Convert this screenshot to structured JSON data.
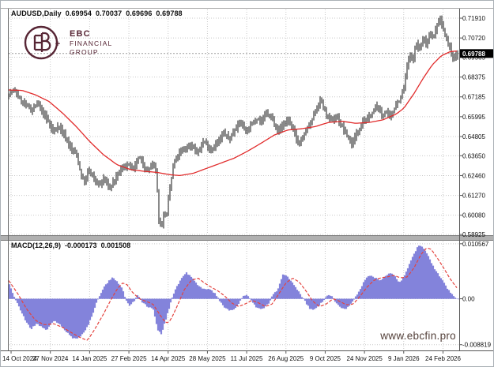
{
  "header": {
    "symbol": "AUDUSD,Daily",
    "open": "0.69954",
    "high": "0.70037",
    "low": "0.69696",
    "close": "0.69788"
  },
  "logo": {
    "line1": "EBC",
    "line2": "FINANCIAL",
    "line3": "GROUP",
    "monogram": "EB+",
    "color": "#572635"
  },
  "watermark": {
    "text": "www.ebcfin.pro",
    "color": "#53403a"
  },
  "macd_header": {
    "name": "MACD(12,26,9)",
    "value_main": "-0.000173",
    "value_signal": "0.001508"
  },
  "chart_data": [
    {
      "type": "bar",
      "title": "AUDUSD,Daily",
      "ohlc": {
        "open": 0.69954,
        "high": 0.70037,
        "low": 0.69696,
        "close": 0.69788
      },
      "ylim": [
        0.5888,
        0.7248
      ],
      "y_ticks": [
        {
          "value": 0.7191,
          "label": "0.71910"
        },
        {
          "value": 0.7072,
          "label": "0.70720"
        },
        {
          "value": 0.69565,
          "label": "0.69565"
        },
        {
          "value": 0.68375,
          "label": "0.68375"
        },
        {
          "value": 0.67185,
          "label": "0.67185"
        },
        {
          "value": 0.65995,
          "label": "0.65995"
        },
        {
          "value": 0.64805,
          "label": "0.64805"
        },
        {
          "value": 0.6365,
          "label": "0.63650"
        },
        {
          "value": 0.6246,
          "label": "0.62460"
        },
        {
          "value": 0.6127,
          "label": "0.61270"
        },
        {
          "value": 0.6008,
          "label": "0.60080"
        },
        {
          "value": 0.58925,
          "label": "0.58925"
        }
      ],
      "current_price": {
        "value": 0.69788,
        "label": "0.69788"
      },
      "x_ticks": [
        {
          "pos": 0.0053,
          "label": "14 Oct 2024"
        },
        {
          "pos": 0.0924,
          "label": "27 Nov 2024"
        },
        {
          "pos": 0.1796,
          "label": "14 Jan 2025"
        },
        {
          "pos": 0.2668,
          "label": "27 Feb 2025"
        },
        {
          "pos": 0.3539,
          "label": "14 Apr 2025"
        },
        {
          "pos": 0.4411,
          "label": "28 May 2025"
        },
        {
          "pos": 0.5282,
          "label": "11 Jul 2025"
        },
        {
          "pos": 0.6154,
          "label": "26 Aug 2025"
        },
        {
          "pos": 0.7025,
          "label": "9 Oct 2025"
        },
        {
          "pos": 0.7897,
          "label": "24 Nov 2025"
        },
        {
          "pos": 0.8768,
          "label": "9 Jan 2026"
        },
        {
          "pos": 0.964,
          "label": "24 Feb 2026"
        }
      ],
      "price_path": [
        [
          0.0,
          0.674
        ],
        [
          0.012,
          0.6758
        ],
        [
          0.025,
          0.6705
        ],
        [
          0.04,
          0.6665
        ],
        [
          0.052,
          0.6638
        ],
        [
          0.063,
          0.668
        ],
        [
          0.075,
          0.6628
        ],
        [
          0.09,
          0.656
        ],
        [
          0.1,
          0.6502
        ],
        [
          0.11,
          0.655
        ],
        [
          0.125,
          0.6482
        ],
        [
          0.14,
          0.6405
        ],
        [
          0.152,
          0.6368
        ],
        [
          0.162,
          0.6235
        ],
        [
          0.17,
          0.6205
        ],
        [
          0.178,
          0.6282
        ],
        [
          0.19,
          0.6225
        ],
        [
          0.203,
          0.6192
        ],
        [
          0.213,
          0.6232
        ],
        [
          0.224,
          0.6165
        ],
        [
          0.236,
          0.6222
        ],
        [
          0.25,
          0.6282
        ],
        [
          0.264,
          0.6312
        ],
        [
          0.278,
          0.6282
        ],
        [
          0.29,
          0.6358
        ],
        [
          0.3,
          0.6312
        ],
        [
          0.31,
          0.6272
        ],
        [
          0.32,
          0.6322
        ],
        [
          0.329,
          0.6255
        ],
        [
          0.334,
          0.5995
        ],
        [
          0.34,
          0.5932
        ],
        [
          0.346,
          0.6032
        ],
        [
          0.351,
          0.5988
        ],
        [
          0.358,
          0.6152
        ],
        [
          0.368,
          0.6322
        ],
        [
          0.378,
          0.6372
        ],
        [
          0.39,
          0.6402
        ],
        [
          0.405,
          0.6432
        ],
        [
          0.42,
          0.6382
        ],
        [
          0.435,
          0.6452
        ],
        [
          0.45,
          0.6402
        ],
        [
          0.465,
          0.6442
        ],
        [
          0.48,
          0.6502
        ],
        [
          0.492,
          0.6462
        ],
        [
          0.505,
          0.6532
        ],
        [
          0.516,
          0.6572
        ],
        [
          0.528,
          0.6512
        ],
        [
          0.54,
          0.6552
        ],
        [
          0.552,
          0.6592
        ],
        [
          0.562,
          0.6572
        ],
        [
          0.575,
          0.6622
        ],
        [
          0.588,
          0.6582
        ],
        [
          0.6,
          0.6512
        ],
        [
          0.612,
          0.6552
        ],
        [
          0.624,
          0.6582
        ],
        [
          0.636,
          0.6502
        ],
        [
          0.646,
          0.6432
        ],
        [
          0.656,
          0.6482
        ],
        [
          0.666,
          0.6532
        ],
        [
          0.676,
          0.6582
        ],
        [
          0.686,
          0.6652
        ],
        [
          0.695,
          0.6702
        ],
        [
          0.706,
          0.6622
        ],
        [
          0.718,
          0.6572
        ],
        [
          0.73,
          0.6602
        ],
        [
          0.742,
          0.6542
        ],
        [
          0.754,
          0.6482
        ],
        [
          0.764,
          0.6435
        ],
        [
          0.776,
          0.6502
        ],
        [
          0.788,
          0.6572
        ],
        [
          0.8,
          0.6582
        ],
        [
          0.812,
          0.6632
        ],
        [
          0.822,
          0.6662
        ],
        [
          0.832,
          0.6602
        ],
        [
          0.84,
          0.6642
        ],
        [
          0.848,
          0.6592
        ],
        [
          0.856,
          0.6632
        ],
        [
          0.864,
          0.6682
        ],
        [
          0.872,
          0.6702
        ],
        [
          0.88,
          0.6772
        ],
        [
          0.887,
          0.6902
        ],
        [
          0.893,
          0.6972
        ],
        [
          0.9,
          0.6932
        ],
        [
          0.907,
          0.7042
        ],
        [
          0.915,
          0.7002
        ],
        [
          0.923,
          0.7072
        ],
        [
          0.931,
          0.7032
        ],
        [
          0.939,
          0.7112
        ],
        [
          0.947,
          0.7072
        ],
        [
          0.955,
          0.7162
        ],
        [
          0.961,
          0.7185
        ],
        [
          0.969,
          0.7112
        ],
        [
          0.977,
          0.7052
        ],
        [
          0.985,
          0.6992
        ],
        [
          0.992,
          0.6948
        ],
        [
          1.0,
          0.69788
        ]
      ],
      "ma_path": [
        [
          0.0,
          0.676
        ],
        [
          0.03,
          0.6757
        ],
        [
          0.06,
          0.673
        ],
        [
          0.09,
          0.669
        ],
        [
          0.12,
          0.662
        ],
        [
          0.15,
          0.654
        ],
        [
          0.18,
          0.645
        ],
        [
          0.21,
          0.6372
        ],
        [
          0.24,
          0.6312
        ],
        [
          0.27,
          0.6282
        ],
        [
          0.3,
          0.6272
        ],
        [
          0.33,
          0.6265
        ],
        [
          0.355,
          0.6252
        ],
        [
          0.38,
          0.6246
        ],
        [
          0.41,
          0.626
        ],
        [
          0.44,
          0.629
        ],
        [
          0.47,
          0.632
        ],
        [
          0.5,
          0.635
        ],
        [
          0.53,
          0.6392
        ],
        [
          0.56,
          0.644
        ],
        [
          0.59,
          0.649
        ],
        [
          0.62,
          0.652
        ],
        [
          0.65,
          0.6527
        ],
        [
          0.68,
          0.654
        ],
        [
          0.71,
          0.6565
        ],
        [
          0.74,
          0.6572
        ],
        [
          0.77,
          0.656
        ],
        [
          0.8,
          0.6565
        ],
        [
          0.83,
          0.658
        ],
        [
          0.86,
          0.6615
        ],
        [
          0.877,
          0.665
        ],
        [
          0.9,
          0.674
        ],
        [
          0.92,
          0.683
        ],
        [
          0.94,
          0.691
        ],
        [
          0.96,
          0.6965
        ],
        [
          0.98,
          0.699
        ],
        [
          1.0,
          0.6995
        ]
      ],
      "colors": {
        "bars": "#4a4a4a",
        "ma_line": "#e12b2b",
        "grid": "#c9c9c9",
        "bid_line": "#9b9b9b",
        "current_label_bg": "#000000",
        "current_label_fg": "#ffffff"
      }
    },
    {
      "type": "area",
      "name": "MACD(12,26,9)",
      "values": {
        "macd": -0.000173,
        "signal": 0.001508
      },
      "ylim": [
        -0.00992,
        0.01115
      ],
      "y_ticks": [
        {
          "value": 0.010567,
          "label": "0.010567"
        },
        {
          "value": 0.0,
          "label": "0.00"
        },
        {
          "value": -0.008819,
          "label": "-0.008819"
        }
      ],
      "hist_path": [
        [
          0.0,
          0.0028
        ],
        [
          0.01,
          0.0005
        ],
        [
          0.018,
          -0.001
        ],
        [
          0.035,
          -0.004
        ],
        [
          0.048,
          -0.0058
        ],
        [
          0.06,
          -0.0048
        ],
        [
          0.07,
          -0.0052
        ],
        [
          0.082,
          -0.006
        ],
        [
          0.1,
          -0.0042
        ],
        [
          0.112,
          -0.0048
        ],
        [
          0.125,
          -0.0062
        ],
        [
          0.14,
          -0.0075
        ],
        [
          0.15,
          -0.0078
        ],
        [
          0.16,
          -0.007
        ],
        [
          0.175,
          -0.0052
        ],
        [
          0.19,
          -0.0018
        ],
        [
          0.197,
          0.0
        ],
        [
          0.21,
          0.0022
        ],
        [
          0.228,
          0.004
        ],
        [
          0.24,
          0.0034
        ],
        [
          0.252,
          0.0018
        ],
        [
          0.258,
          0.0
        ],
        [
          0.268,
          -0.0013
        ],
        [
          0.278,
          -0.0004
        ],
        [
          0.285,
          0.0008
        ],
        [
          0.295,
          -0.0005
        ],
        [
          0.308,
          -0.0016
        ],
        [
          0.32,
          -0.0018
        ],
        [
          0.33,
          -0.006
        ],
        [
          0.338,
          -0.0068
        ],
        [
          0.348,
          -0.004
        ],
        [
          0.36,
          -0.0005
        ],
        [
          0.368,
          0.0015
        ],
        [
          0.385,
          0.0042
        ],
        [
          0.395,
          0.005
        ],
        [
          0.405,
          0.0042
        ],
        [
          0.42,
          0.0025
        ],
        [
          0.432,
          0.0018
        ],
        [
          0.445,
          0.002
        ],
        [
          0.458,
          0.001
        ],
        [
          0.465,
          0.0
        ],
        [
          0.478,
          -0.0015
        ],
        [
          0.49,
          -0.0022
        ],
        [
          0.505,
          -0.0018
        ],
        [
          0.512,
          -0.0008
        ],
        [
          0.52,
          0.0005
        ],
        [
          0.53,
          0.0008
        ],
        [
          0.54,
          -0.0005
        ],
        [
          0.552,
          -0.0018
        ],
        [
          0.565,
          -0.002
        ],
        [
          0.578,
          -0.0008
        ],
        [
          0.585,
          0.0005
        ],
        [
          0.598,
          0.0018
        ],
        [
          0.61,
          0.0048
        ],
        [
          0.622,
          0.004
        ],
        [
          0.632,
          0.0028
        ],
        [
          0.645,
          0.0012
        ],
        [
          0.655,
          0.0
        ],
        [
          0.668,
          -0.0018
        ],
        [
          0.678,
          -0.0022
        ],
        [
          0.69,
          -0.0012
        ],
        [
          0.7,
          -0.0003
        ],
        [
          0.71,
          0.0007
        ],
        [
          0.718,
          0.0005
        ],
        [
          0.728,
          -0.0008
        ],
        [
          0.738,
          -0.0018
        ],
        [
          0.748,
          -0.002
        ],
        [
          0.76,
          -0.001
        ],
        [
          0.768,
          0.0
        ],
        [
          0.775,
          0.0008
        ],
        [
          0.785,
          0.0025
        ],
        [
          0.795,
          0.004
        ],
        [
          0.805,
          0.0045
        ],
        [
          0.815,
          0.004
        ],
        [
          0.825,
          0.0035
        ],
        [
          0.838,
          0.0045
        ],
        [
          0.848,
          0.005
        ],
        [
          0.858,
          0.0045
        ],
        [
          0.868,
          0.0032
        ],
        [
          0.878,
          0.004
        ],
        [
          0.888,
          0.006
        ],
        [
          0.9,
          0.0085
        ],
        [
          0.91,
          0.01
        ],
        [
          0.916,
          0.0103
        ],
        [
          0.924,
          0.0095
        ],
        [
          0.934,
          0.008
        ],
        [
          0.944,
          0.0062
        ],
        [
          0.954,
          0.0048
        ],
        [
          0.964,
          0.0035
        ],
        [
          0.974,
          0.0022
        ],
        [
          0.984,
          0.001
        ],
        [
          0.992,
          0.0002
        ],
        [
          1.0,
          -0.000173
        ]
      ],
      "signal_path": [
        [
          0.0,
          0.0035
        ],
        [
          0.02,
          0.001
        ],
        [
          0.04,
          -0.002
        ],
        [
          0.06,
          -0.0042
        ],
        [
          0.08,
          -0.005
        ],
        [
          0.1,
          -0.0048
        ],
        [
          0.12,
          -0.0055
        ],
        [
          0.145,
          -0.0068
        ],
        [
          0.16,
          -0.0075
        ],
        [
          0.175,
          -0.008
        ],
        [
          0.19,
          -0.006
        ],
        [
          0.21,
          -0.003
        ],
        [
          0.225,
          -0.0005
        ],
        [
          0.24,
          0.0018
        ],
        [
          0.252,
          0.003
        ],
        [
          0.262,
          0.0028
        ],
        [
          0.275,
          0.0012
        ],
        [
          0.29,
          0.0
        ],
        [
          0.305,
          -0.0005
        ],
        [
          0.32,
          -0.001
        ],
        [
          0.335,
          -0.003
        ],
        [
          0.35,
          -0.0048
        ],
        [
          0.36,
          -0.004
        ],
        [
          0.375,
          -0.0012
        ],
        [
          0.39,
          0.0018
        ],
        [
          0.405,
          0.0035
        ],
        [
          0.42,
          0.004
        ],
        [
          0.435,
          0.003
        ],
        [
          0.45,
          0.0022
        ],
        [
          0.465,
          0.0015
        ],
        [
          0.48,
          0.0005
        ],
        [
          0.495,
          -0.0008
        ],
        [
          0.51,
          -0.0015
        ],
        [
          0.525,
          -0.001
        ],
        [
          0.54,
          -0.0003
        ],
        [
          0.555,
          -0.0008
        ],
        [
          0.57,
          -0.0015
        ],
        [
          0.585,
          -0.001
        ],
        [
          0.6,
          0.001
        ],
        [
          0.615,
          0.003
        ],
        [
          0.63,
          0.004
        ],
        [
          0.645,
          0.0032
        ],
        [
          0.66,
          0.0015
        ],
        [
          0.675,
          -0.0005
        ],
        [
          0.69,
          -0.0015
        ],
        [
          0.705,
          -0.001
        ],
        [
          0.72,
          0.0
        ],
        [
          0.735,
          -0.0005
        ],
        [
          0.75,
          -0.0012
        ],
        [
          0.765,
          -0.001
        ],
        [
          0.78,
          0.0005
        ],
        [
          0.795,
          0.0022
        ],
        [
          0.81,
          0.0035
        ],
        [
          0.825,
          0.004
        ],
        [
          0.84,
          0.0042
        ],
        [
          0.855,
          0.0045
        ],
        [
          0.87,
          0.004
        ],
        [
          0.885,
          0.0042
        ],
        [
          0.9,
          0.006
        ],
        [
          0.915,
          0.0085
        ],
        [
          0.928,
          0.0098
        ],
        [
          0.938,
          0.0095
        ],
        [
          0.95,
          0.008
        ],
        [
          0.965,
          0.006
        ],
        [
          0.98,
          0.0038
        ],
        [
          1.0,
          0.001508
        ]
      ],
      "colors": {
        "histogram": "#8383db",
        "signal_line": "#e4433e",
        "zero_line": "#c9c9c9"
      }
    }
  ]
}
